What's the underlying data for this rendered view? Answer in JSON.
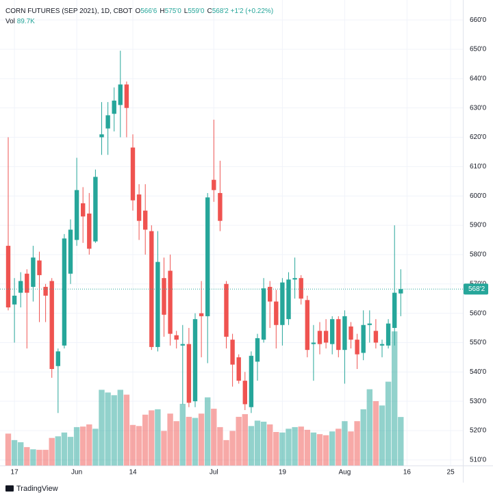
{
  "chart_data": {
    "type": "candlestick",
    "title": "CORN FUTURES (SEP 2021), 1D, CBOT",
    "ohlc_legend": [
      {
        "name": "O",
        "value": "566'6"
      },
      {
        "name": "H",
        "value": "575'0"
      },
      {
        "name": "L",
        "value": "559'0"
      },
      {
        "name": "C",
        "value": "568'2"
      }
    ],
    "change": "+1'2 (+0.22%)",
    "volume_name": "Vol",
    "volume_label": "89.7K",
    "up_color": "#26a69a",
    "down_color": "#ef5350",
    "grid": true,
    "categories": [
      null,
      "17",
      null,
      null,
      null,
      null,
      null,
      null,
      null,
      null,
      null,
      "Jun",
      null,
      null,
      null,
      null,
      null,
      null,
      null,
      null,
      "14",
      null,
      null,
      null,
      null,
      null,
      null,
      null,
      null,
      null,
      null,
      null,
      null,
      "Jul",
      null,
      null,
      null,
      null,
      null,
      null,
      null,
      null,
      null,
      null,
      "19",
      null,
      null,
      null,
      null,
      null,
      null,
      null,
      null,
      null,
      "Aug",
      null,
      null,
      null,
      null,
      null,
      null,
      null,
      null,
      null,
      "16",
      null,
      null,
      null,
      null,
      null,
      null,
      "25",
      null
    ],
    "open": [
      583,
      563,
      567,
      573.5,
      569,
      578,
      569,
      571,
      542,
      549,
      573.5,
      585,
      597.5,
      594,
      584.5,
      620,
      623,
      628,
      631,
      638,
      616.5,
      600.5,
      595,
      588,
      548.5,
      572,
      574.5,
      552.5,
      549,
      549.5,
      530,
      560,
      559,
      605.5,
      601,
      570,
      551,
      545,
      537,
      528,
      543.5,
      551,
      569,
      564,
      556,
      558,
      571.5,
      572,
      564.5,
      549.5,
      554,
      554,
      549.5,
      558,
      547.5,
      555.5,
      551,
      546.5,
      556,
      554,
      549,
      549,
      555,
      566.75,
      null,
      null,
      null,
      null,
      null,
      null,
      null,
      null,
      null
    ],
    "high": [
      620,
      572,
      574,
      575,
      583,
      581,
      570,
      572,
      548,
      587,
      592,
      613,
      603,
      601,
      609,
      632,
      632,
      637,
      649.5,
      639,
      621,
      604,
      604,
      590,
      588,
      579,
      580,
      554,
      556,
      555,
      560,
      571,
      601,
      626,
      612,
      571,
      553,
      546,
      540,
      547,
      553,
      572,
      571,
      568,
      572,
      574,
      579,
      573,
      566,
      556,
      557,
      558,
      559,
      559,
      561,
      557,
      553,
      561,
      561,
      558,
      551,
      558,
      590,
      575,
      null,
      null,
      null,
      null,
      null,
      null,
      null,
      null,
      null
    ],
    "low": [
      561,
      550,
      562,
      548,
      564,
      557,
      557,
      538,
      526,
      548,
      570,
      583,
      584,
      580,
      584,
      614,
      614,
      622,
      620,
      620,
      595,
      585,
      580,
      547.5,
      547,
      552,
      549,
      548,
      529,
      528,
      528,
      545,
      543,
      598,
      588,
      548,
      535,
      536,
      527,
      526,
      537,
      550,
      555,
      548,
      549,
      556,
      565,
      563,
      545,
      537,
      546,
      548,
      546,
      545,
      536,
      548,
      541,
      544,
      550,
      548,
      545,
      548,
      549,
      559,
      null,
      null,
      null,
      null,
      null,
      null,
      null,
      null,
      null
    ],
    "close": [
      562,
      566,
      571,
      567,
      579,
      573,
      566,
      541,
      547,
      585.5,
      588.5,
      602,
      593,
      582,
      606.5,
      621,
      627.5,
      632.5,
      638,
      630,
      598.5,
      591.5,
      588.5,
      548.5,
      577.5,
      559.5,
      553,
      551,
      549.5,
      529.5,
      558,
      559,
      599.5,
      602,
      591.5,
      552,
      542.5,
      537,
      529,
      545.5,
      551.5,
      568.5,
      564,
      556,
      570.5,
      571.5,
      572,
      565,
      547.5,
      550,
      549.5,
      550,
      558,
      547.5,
      559,
      551,
      546,
      556,
      556.5,
      550,
      549.5,
      556.5,
      567,
      568.25,
      null,
      null,
      null,
      null,
      null,
      null,
      null,
      null,
      null
    ],
    "volume": [
      59000,
      47000,
      43000,
      34000,
      30000,
      29000,
      29000,
      51000,
      54000,
      61000,
      53000,
      71000,
      72000,
      76000,
      68000,
      140000,
      135000,
      130000,
      140000,
      131000,
      75000,
      73000,
      94000,
      102000,
      104000,
      64000,
      96000,
      82000,
      114000,
      90000,
      88000,
      96000,
      126000,
      105000,
      71000,
      47000,
      64000,
      90000,
      95000,
      73000,
      83000,
      81000,
      76000,
      62000,
      61000,
      68000,
      71000,
      72000,
      66000,
      61000,
      58000,
      56000,
      63000,
      68000,
      82000,
      63000,
      82000,
      104000,
      141000,
      119000,
      111000,
      155000,
      248000,
      89700,
      null,
      null,
      null,
      null,
      null,
      null,
      null,
      null,
      null
    ],
    "ylim": [
      508.1,
      666.8
    ],
    "volume_ylim": [
      0,
      300000
    ],
    "yticks": [
      {
        "value": 510,
        "label": "510'0"
      },
      {
        "value": 520,
        "label": "520'0"
      },
      {
        "value": 530,
        "label": "530'0"
      },
      {
        "value": 540,
        "label": "540'0"
      },
      {
        "value": 550,
        "label": "550'0"
      },
      {
        "value": 560,
        "label": "560'0"
      },
      {
        "value": 570,
        "label": "570'0"
      },
      {
        "value": 580,
        "label": "580'0"
      },
      {
        "value": 590,
        "label": "590'0"
      },
      {
        "value": 600,
        "label": "600'0"
      },
      {
        "value": 610,
        "label": "610'0"
      },
      {
        "value": 620,
        "label": "620'0"
      },
      {
        "value": 630,
        "label": "630'0"
      },
      {
        "value": 640,
        "label": "640'0"
      },
      {
        "value": 650,
        "label": "650'0"
      },
      {
        "value": 660,
        "label": "660'0"
      }
    ],
    "last_price": {
      "value": 568.25,
      "label": "568'2"
    },
    "brand": "TradingView"
  }
}
